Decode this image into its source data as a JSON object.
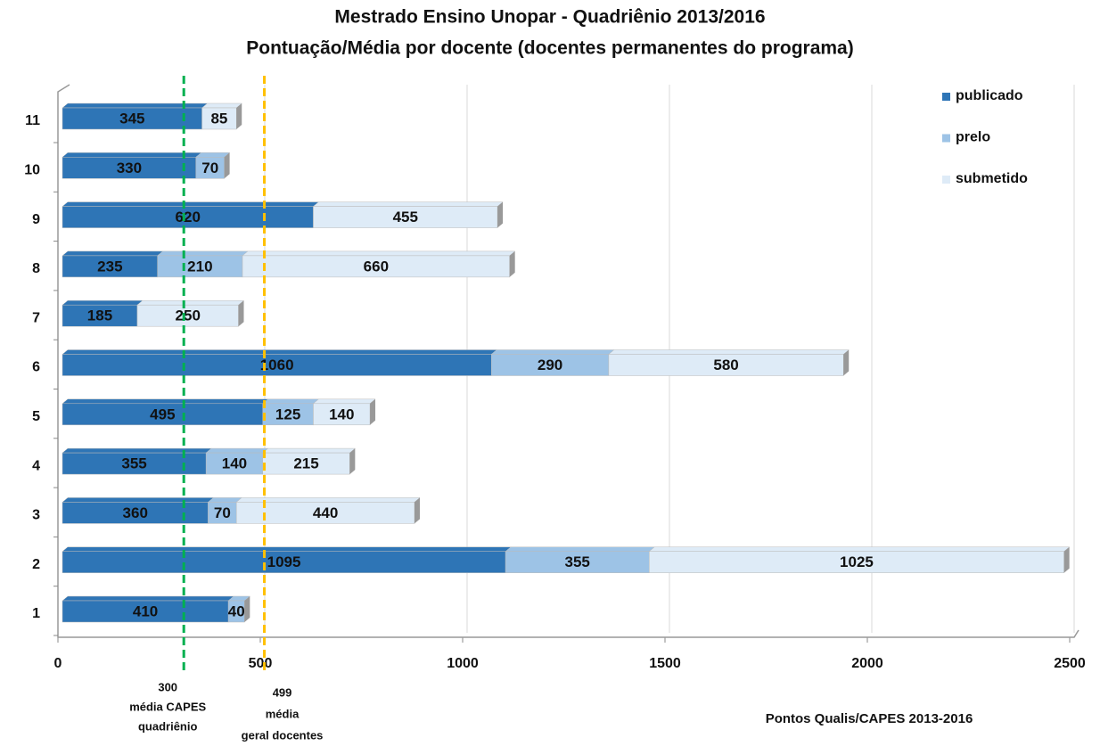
{
  "chart_data": {
    "type": "bar",
    "orientation": "horizontal",
    "stacked": true,
    "title": [
      "Mestrado Ensino Unopar - Quadriênio 2013/2016",
      "Pontuação/Média por docente (docentes permanentes do programa)"
    ],
    "categories": [
      "1",
      "2",
      "3",
      "4",
      "5",
      "6",
      "7",
      "8",
      "9",
      "10",
      "11"
    ],
    "series": [
      {
        "name": "publicado",
        "color": "#2e75b6",
        "values": [
          410,
          1095,
          360,
          355,
          495,
          1060,
          185,
          235,
          620,
          330,
          345
        ]
      },
      {
        "name": "prelo",
        "color": "#9dc3e6",
        "values": [
          40,
          355,
          70,
          140,
          125,
          290,
          null,
          210,
          null,
          70,
          null
        ]
      },
      {
        "name": "submetido",
        "color": "#deebf7",
        "values": [
          null,
          1025,
          440,
          215,
          140,
          580,
          250,
          660,
          455,
          null,
          85
        ]
      }
    ],
    "xlim": [
      0,
      2500
    ],
    "xticks": [
      0,
      500,
      1000,
      1500,
      2000,
      2500
    ],
    "grid": true,
    "legend": "top-right",
    "xlabel": "Pontos Qualis/CAPES  2013-2016",
    "reference_lines": [
      {
        "value": 300,
        "color": "#00b050",
        "label": [
          "300",
          "média CAPES",
          "quadriênio"
        ]
      },
      {
        "value": 499,
        "color": "#ffc000",
        "label": [
          "499",
          "média",
          "geral docentes"
        ]
      }
    ]
  }
}
